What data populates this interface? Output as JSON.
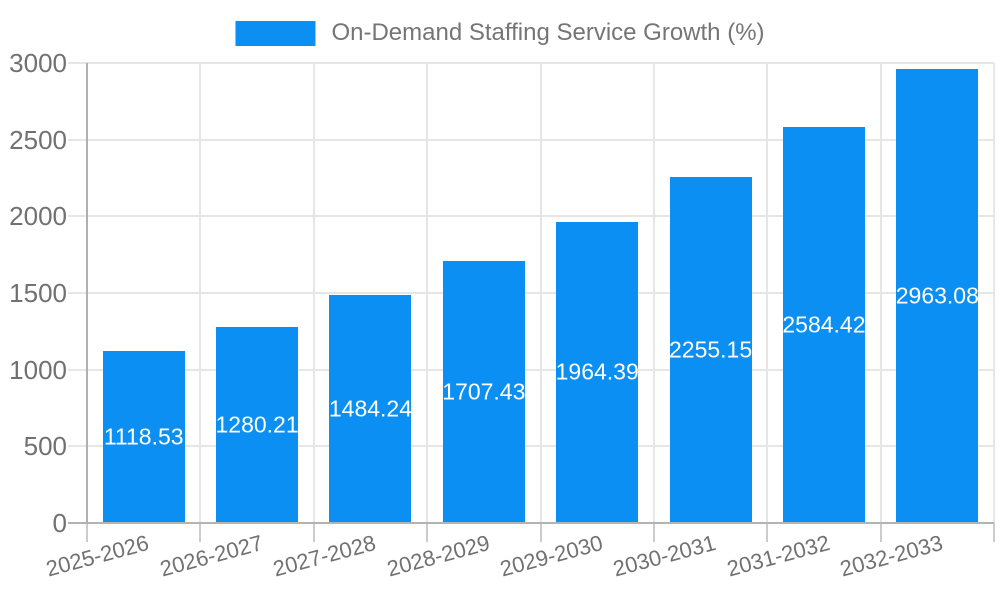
{
  "chart_data": {
    "type": "bar",
    "title": "On-Demand Staffing Service Growth (%)",
    "legend": {
      "label": "On-Demand Staffing Service Growth (%)",
      "position": "top-center"
    },
    "categories": [
      "2025-2026",
      "2026-2027",
      "2027-2028",
      "2028-2029",
      "2029-2030",
      "2030-2031",
      "2031-2032",
      "2032-2033"
    ],
    "values": [
      1118.53,
      1280.21,
      1484.24,
      1707.43,
      1964.39,
      2255.15,
      2584.42,
      2963.08
    ],
    "value_labels": [
      "1118.53",
      "1280.21",
      "1484.24",
      "1707.43",
      "1964.39",
      "2255.15",
      "2584.42",
      "2963.08"
    ],
    "xlabel": "",
    "ylabel": "",
    "ylim": [
      0,
      3000
    ],
    "yticks": [
      0,
      500,
      1000,
      1500,
      2000,
      2500,
      3000
    ],
    "grid": true,
    "x_tick_rotation_deg": -15,
    "colors": {
      "bar": "#0b8ff2",
      "value_label": "#ffffff",
      "axis_label": "#717171",
      "legend_text": "#757575",
      "gridline": "#e6e6e6",
      "axis_line": "#b3b3b3",
      "tick": "#cccccc",
      "background": "#ffffff"
    }
  }
}
